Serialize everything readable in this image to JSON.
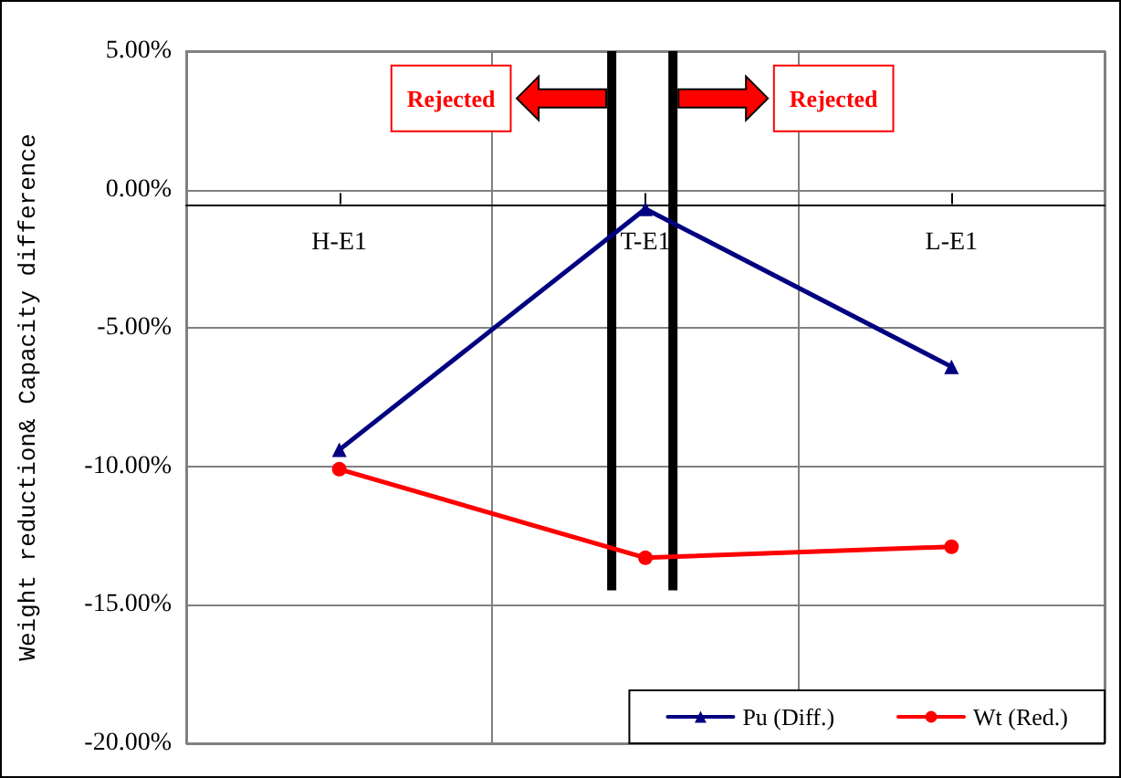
{
  "chart_data": {
    "type": "line",
    "ylabel": "Weight reduction& Capacity difference",
    "categories": [
      "H-E1",
      "T-E1",
      "L-E1"
    ],
    "series": [
      {
        "name": "Pu (Diff.)",
        "color": "#000080",
        "marker": "triangle",
        "values": [
          -9.4,
          -0.7,
          -6.4
        ]
      },
      {
        "name": "Wt (Red.)",
        "color": "#ff0000",
        "marker": "circle",
        "values": [
          -10.1,
          -13.3,
          -12.9
        ]
      }
    ],
    "ylim": [
      -20,
      5
    ],
    "yticks": [
      {
        "value": -20,
        "label": "-20.00%"
      },
      {
        "value": -15,
        "label": "-15.00%"
      },
      {
        "value": -10,
        "label": "-10.00%"
      },
      {
        "value": -5,
        "label": "-5.00%"
      },
      {
        "value": 0,
        "label": "0.00%"
      },
      {
        "value": 5,
        "label": "5.00%"
      }
    ],
    "grid": true,
    "legend": "bottom right",
    "annotations": [
      "Rejected",
      "Rejected"
    ]
  }
}
